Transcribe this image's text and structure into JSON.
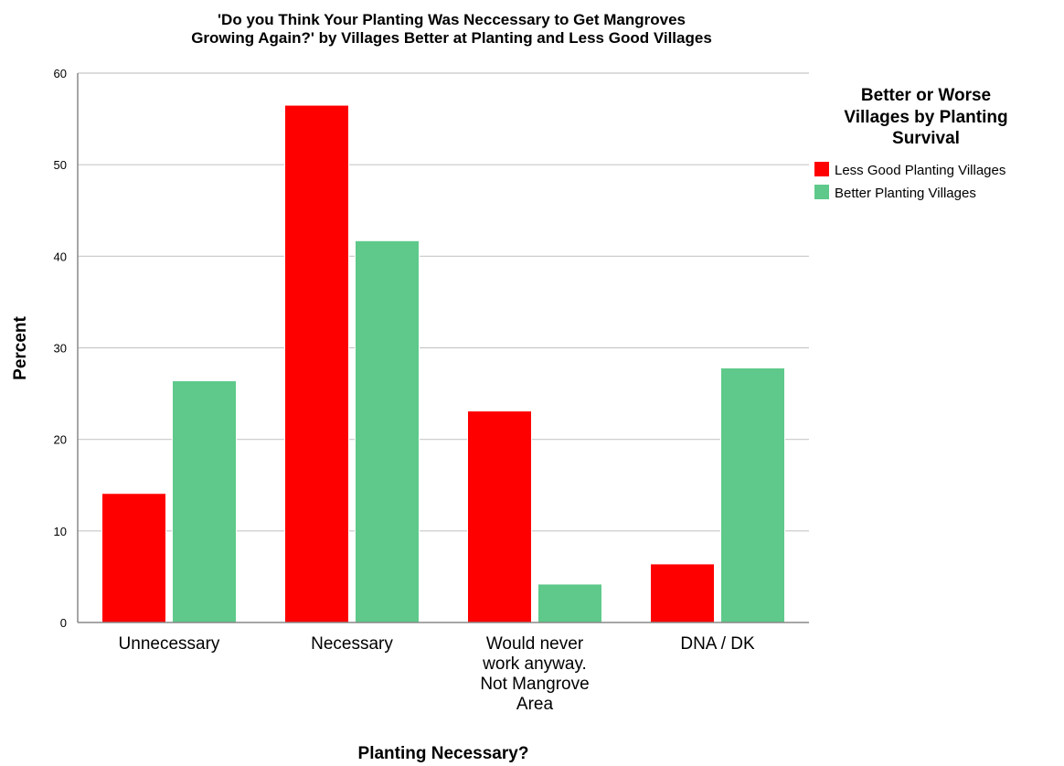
{
  "chart_data": {
    "type": "bar",
    "title": [
      "'Do you Think Your Planting Was Neccessary to Get Mangroves",
      "Growing Again?' by Villages Better at Planting and Less Good Villages"
    ],
    "xlabel": "Planting Necessary?",
    "ylabel": "Percent",
    "ylim": [
      0,
      60
    ],
    "yticks": [
      0,
      10,
      20,
      30,
      40,
      50,
      60
    ],
    "grid": true,
    "legend_position": "right",
    "legend_title": [
      "Better or Worse",
      "Villages by Planting",
      "Survival"
    ],
    "categories": [
      [
        "Unnecessary"
      ],
      [
        "Necessary"
      ],
      [
        "Would never",
        "work anyway.",
        "Not Mangrove",
        "Area"
      ],
      [
        "DNA / DK"
      ]
    ],
    "series": [
      {
        "name": "Less Good Planting Villages",
        "color": "#ff0000",
        "values": [
          14.1,
          56.5,
          23.1,
          6.4
        ]
      },
      {
        "name": "Better Planting Villages",
        "color": "#5ec98a",
        "values": [
          26.4,
          41.7,
          4.2,
          27.8
        ]
      }
    ]
  }
}
